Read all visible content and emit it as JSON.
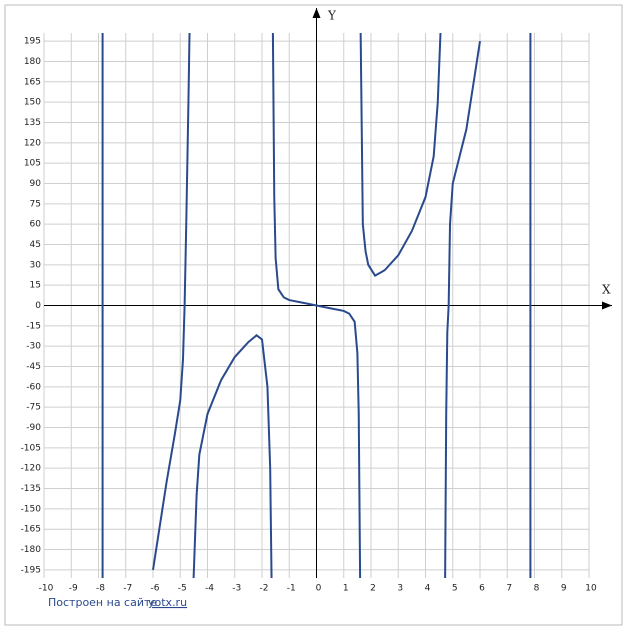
{
  "chart_data": {
    "type": "line",
    "x_label": "X",
    "y_label": "Y",
    "xlim": [
      -10,
      10
    ],
    "ylim": [
      -201,
      201
    ],
    "xticks": [
      -10,
      -9,
      -8,
      -7,
      -6,
      -5,
      -4,
      -3,
      -2,
      -1,
      0,
      1,
      2,
      3,
      4,
      5,
      6,
      7,
      8,
      9,
      10
    ],
    "yticks": [
      -195,
      -180,
      -165,
      -150,
      -135,
      -120,
      -105,
      -90,
      -75,
      -60,
      -45,
      -30,
      -15,
      0,
      15,
      30,
      45,
      60,
      75,
      90,
      105,
      120,
      135,
      150,
      165,
      180,
      195
    ],
    "grid": true,
    "color": "#2a4a8c",
    "x": [
      -7.85,
      -7.85,
      null,
      -6,
      -5.5,
      -5.2,
      -5,
      -4.9,
      -4.84,
      -4.78,
      -4.7,
      -4.66,
      null,
      -4.51,
      -4.4,
      -4.3,
      -4,
      -3.5,
      -3,
      -2.5,
      -2.2,
      -2,
      -1.8,
      -1.7,
      -1.65,
      null,
      -1.6,
      -1.55,
      -1.5,
      -1.4,
      -1.2,
      -1,
      -0.5,
      0,
      0.5,
      1,
      1.2,
      1.4,
      1.5,
      1.55,
      1.6,
      null,
      1.62,
      1.7,
      1.8,
      1.9,
      2.15,
      2.5,
      3,
      3.5,
      4,
      4.3,
      4.45,
      4.55,
      null,
      4.72,
      4.76,
      4.8,
      4.85,
      4.9,
      5,
      5.5,
      6,
      null,
      7.85,
      7.85
    ],
    "values": [
      201,
      -201,
      null,
      -195,
      -130,
      -95,
      -70,
      -40,
      0,
      60,
      150,
      201,
      null,
      -201,
      -140,
      -110,
      -80,
      -55,
      -38,
      -27,
      -22,
      -25,
      -60,
      -120,
      -201,
      null,
      201,
      80,
      35,
      12,
      6,
      4,
      2,
      0,
      -2,
      -4,
      -6,
      -12,
      -35,
      -80,
      -201,
      null,
      201,
      60,
      40,
      30,
      22,
      26,
      37,
      55,
      80,
      110,
      150,
      201,
      null,
      -201,
      -80,
      -20,
      0,
      60,
      90,
      130,
      195,
      null,
      -201,
      201
    ]
  },
  "footer": {
    "text": "Построен на сайте",
    "link": "yotx.ru"
  }
}
